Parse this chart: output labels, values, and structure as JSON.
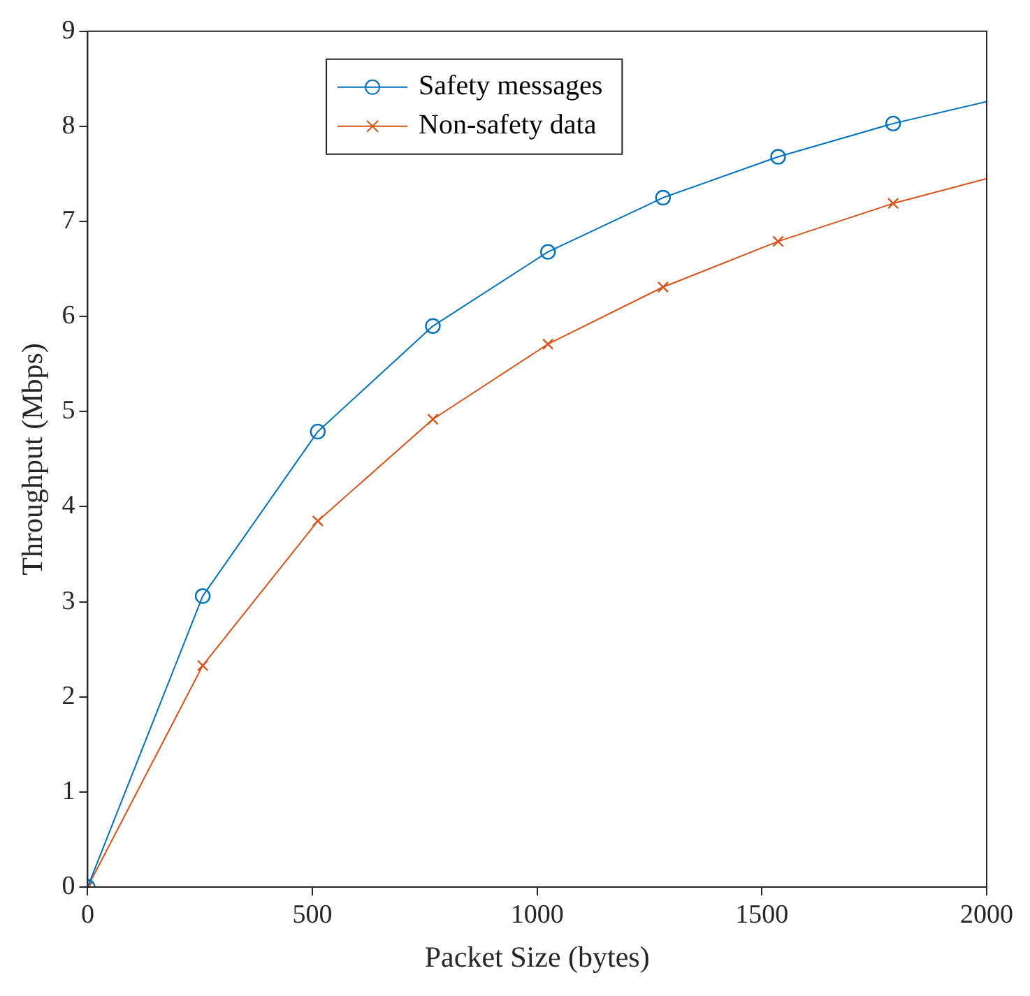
{
  "chart_data": {
    "type": "line",
    "xlabel": "Packet Size (bytes)",
    "ylabel": "Throughput (Mbps)",
    "x": [
      0,
      256,
      512,
      768,
      1024,
      1280,
      1536,
      1792,
      2000
    ],
    "series": [
      {
        "name": "Safety messages",
        "color": "#0072bd",
        "marker": "circle",
        "values": [
          0,
          3.06,
          4.79,
          5.9,
          6.68,
          7.25,
          7.68,
          8.03,
          8.26
        ]
      },
      {
        "name": "Non-safety data",
        "color": "#d95319",
        "marker": "cross",
        "values": [
          0,
          2.33,
          3.85,
          4.92,
          5.71,
          6.31,
          6.79,
          7.19,
          7.45
        ]
      }
    ],
    "xlim": [
      0,
      2000
    ],
    "xticks": [
      0,
      500,
      1000,
      1500,
      2000
    ],
    "ylim": [
      0,
      9
    ],
    "yticks": [
      0,
      1,
      2,
      3,
      4,
      5,
      6,
      7,
      8,
      9
    ],
    "grid": false,
    "legend": "top",
    "line_style": "solid"
  }
}
